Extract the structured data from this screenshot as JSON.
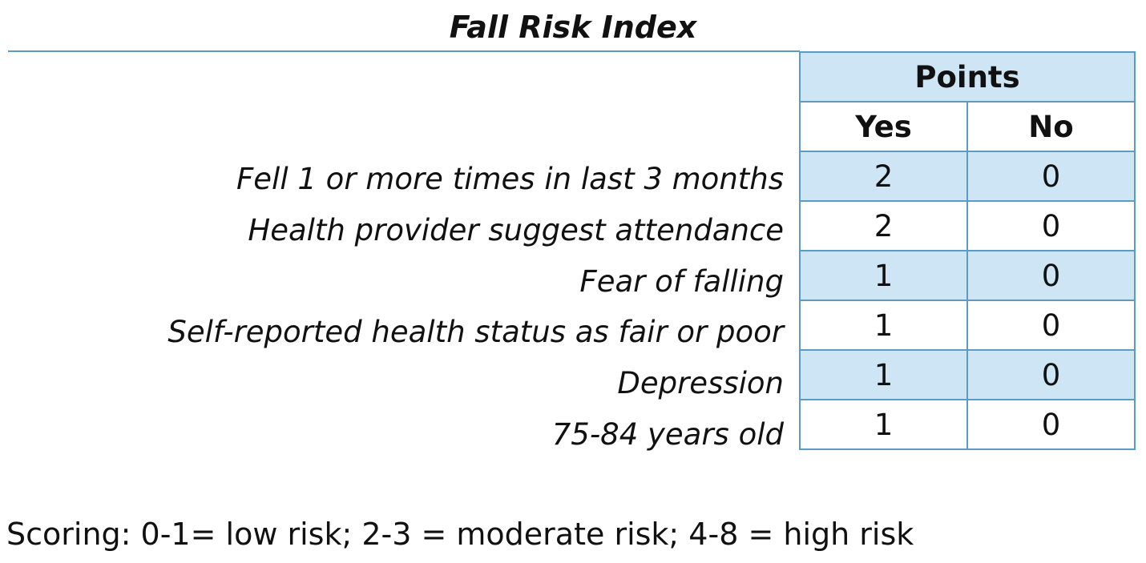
{
  "title": "Fall Risk Index",
  "table": {
    "group_header": "Points",
    "col_yes": "Yes",
    "col_no": "No",
    "rows": [
      {
        "label": "Fell 1 or more times in last 3 months",
        "yes": "2",
        "no": "0"
      },
      {
        "label": "Health provider suggest attendance",
        "yes": "2",
        "no": "0"
      },
      {
        "label": "Fear of falling",
        "yes": "1",
        "no": "0"
      },
      {
        "label": "Self-reported health status as fair or poor",
        "yes": "1",
        "no": "0"
      },
      {
        "label": "Depression",
        "yes": "1",
        "no": "0"
      },
      {
        "label": "75-84 years old",
        "yes": "1",
        "no": "0"
      }
    ]
  },
  "scoring": "Scoring: 0-1= low risk; 2-3 = moderate risk; 4-8 = high risk",
  "colors": {
    "border": "#5b9bc4",
    "shaded_row": "#cde5f4"
  }
}
